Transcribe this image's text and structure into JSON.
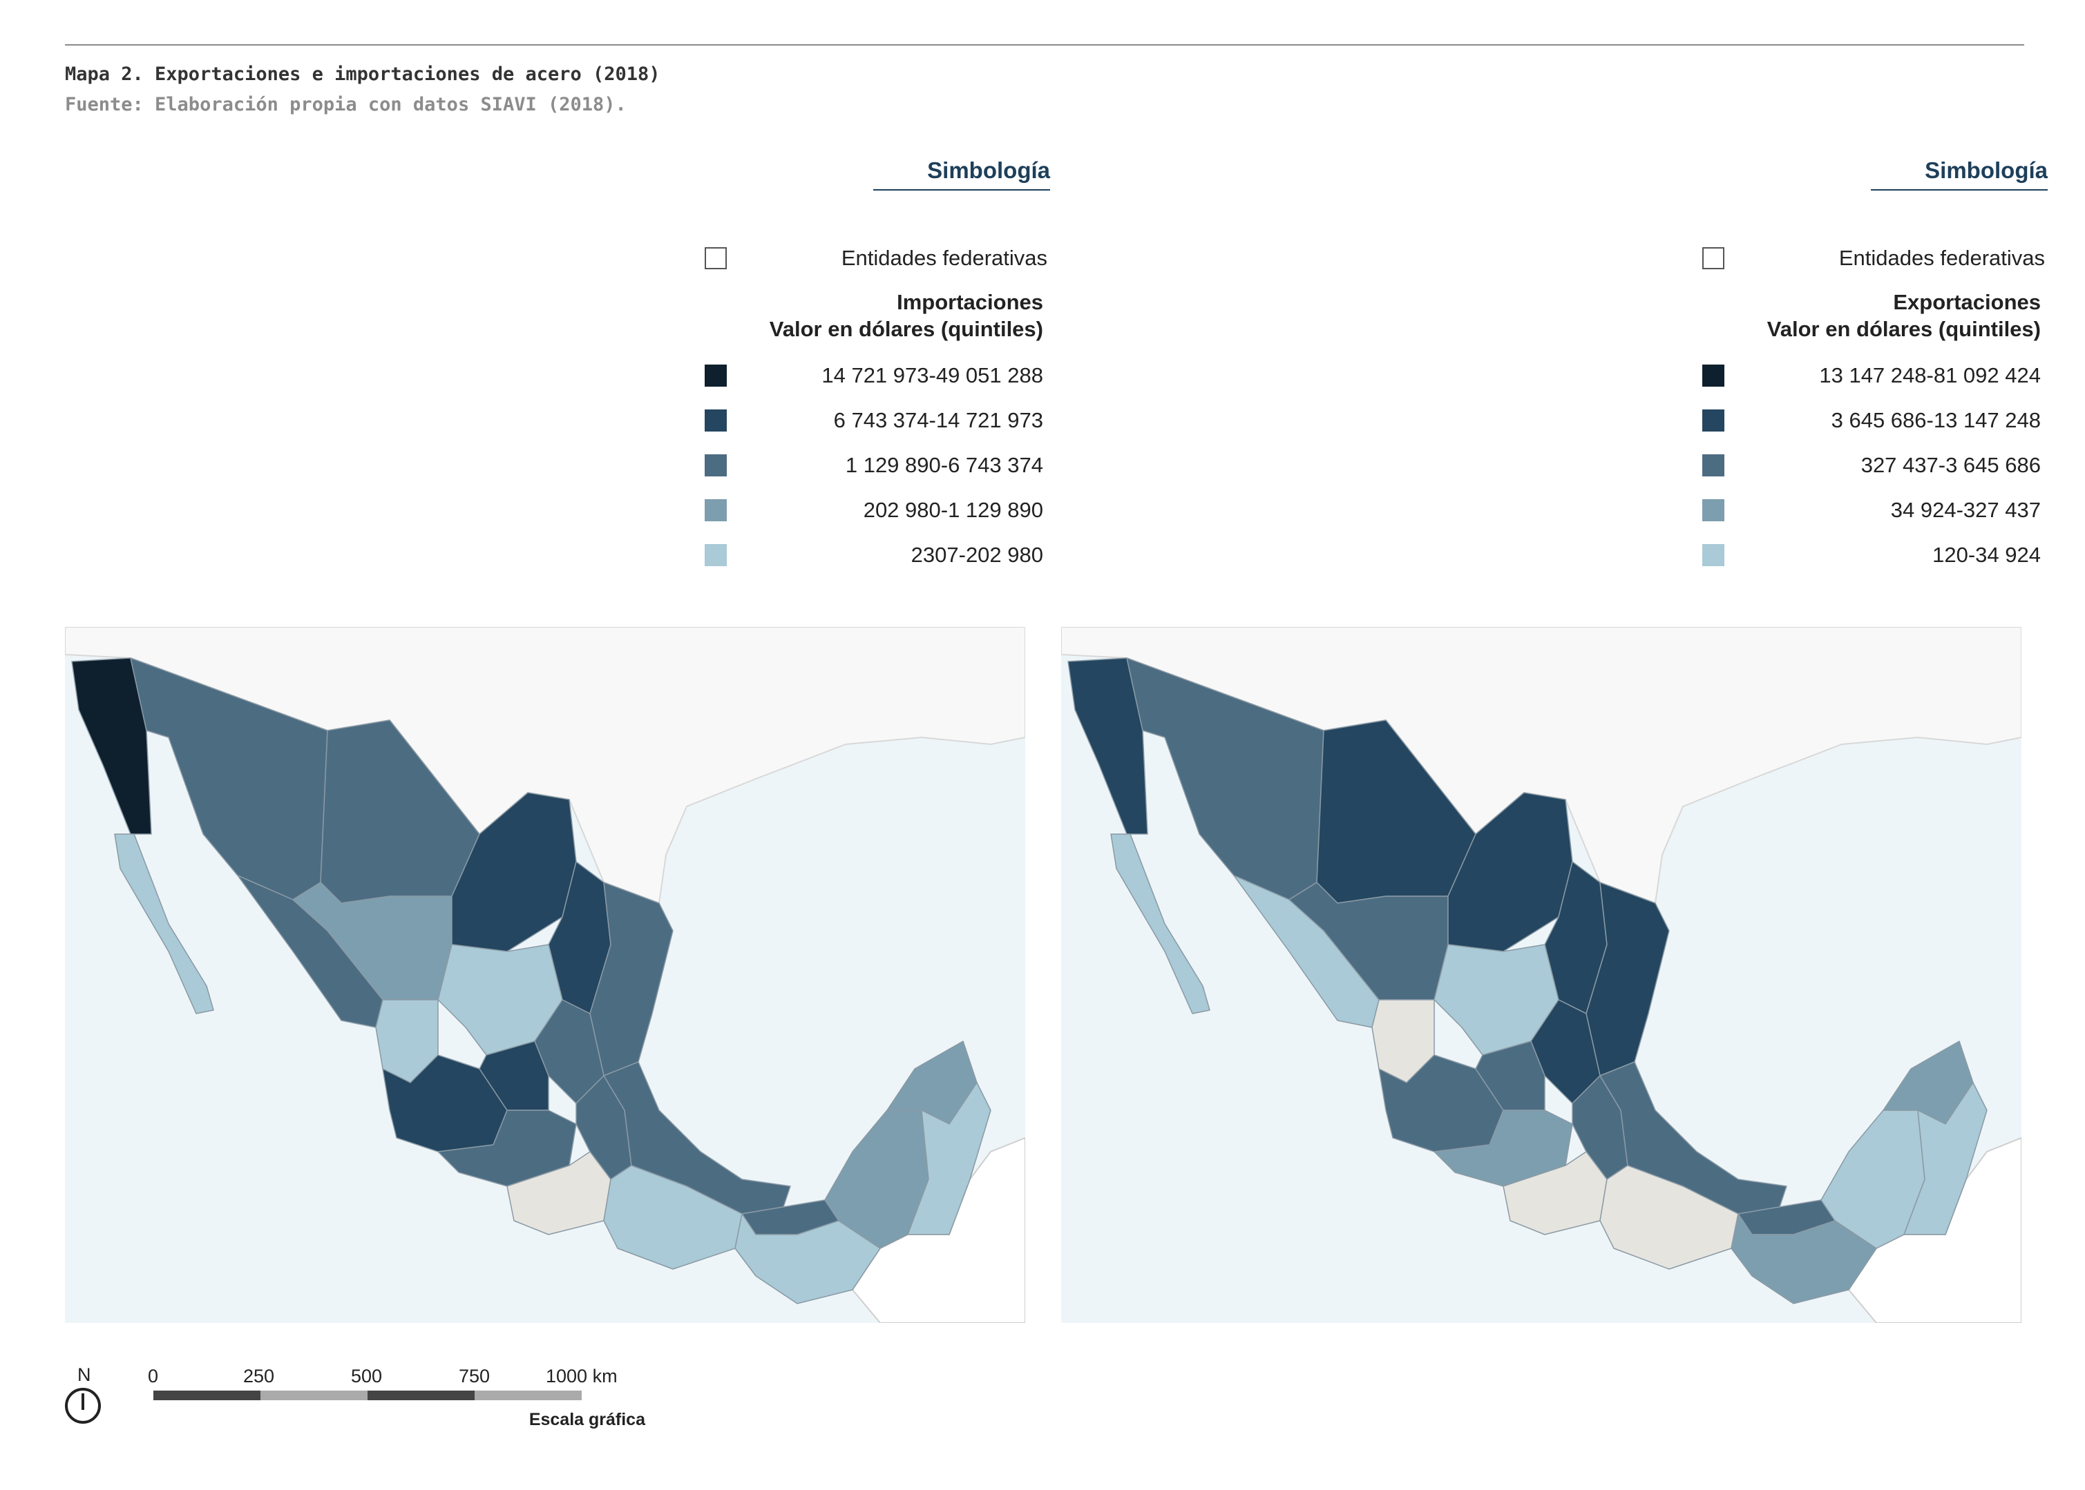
{
  "caption": {
    "title": "Mapa 2. Exportaciones e importaciones de acero (2018)",
    "source": "Fuente: Elaboración propia con datos SIAVI (2018)."
  },
  "colors": {
    "q5": "#0e202e",
    "q4": "#244660",
    "q3": "#4c6c82",
    "q2": "#7d9eae",
    "q1": "#a9cad6",
    "entity_fill": "#ffffff",
    "ocean": "#eef5f8",
    "land_other": "#f8f8f8",
    "no_data": "#e6e4df",
    "title_blue": "#1d3f5a"
  },
  "legends": [
    {
      "title": "Simbología",
      "entities_label": "Entidades federativas",
      "heading_line1": "Importaciones",
      "heading_line2": "Valor en dólares (quintiles)",
      "classes": [
        "14 721 973-49 051 288",
        "6 743 374-14 721 973",
        "1 129 890-6 743 374",
        "202 980-1 129 890",
        "2307-202 980"
      ]
    },
    {
      "title": "Simbología",
      "entities_label": "Entidades federativas",
      "heading_line1": "Exportaciones",
      "heading_line2": "Valor en dólares (quintiles)",
      "classes": [
        "13 147 248-81 092 424",
        "3 645 686-13 147 248",
        "327 437-3 645 686",
        "34 924-327 437",
        "120-34 924"
      ]
    }
  ],
  "maps": [
    {
      "variable": "Importaciones",
      "states": {
        "baja_california": 5,
        "baja_california_sur": 1,
        "sonora": 3,
        "chihuahua": 3,
        "coahuila": 4,
        "nuevo_leon": 4,
        "tamaulipas": 3,
        "sinaloa": 3,
        "durango": 2,
        "zacatecas": 1,
        "san_luis_potosi": 3,
        "nayarit": 1,
        "jalisco": 4,
        "guanajuato": 4,
        "michoacan": 3,
        "guerrero": 0,
        "oaxaca": 1,
        "veracruz": 3,
        "puebla": 3,
        "chiapas": 1,
        "tabasco": 3,
        "campeche": 2,
        "yucatan": 2,
        "quintana_roo": 1
      }
    },
    {
      "variable": "Exportaciones",
      "states": {
        "baja_california": 4,
        "baja_california_sur": 1,
        "sonora": 3,
        "chihuahua": 4,
        "coahuila": 4,
        "nuevo_leon": 4,
        "tamaulipas": 4,
        "sinaloa": 1,
        "durango": 3,
        "zacatecas": 1,
        "san_luis_potosi": 4,
        "nayarit": 0,
        "jalisco": 3,
        "guanajuato": 3,
        "michoacan": 2,
        "guerrero": 0,
        "oaxaca": 0,
        "veracruz": 3,
        "puebla": 3,
        "chiapas": 2,
        "tabasco": 3,
        "campeche": 1,
        "yucatan": 2,
        "quintana_roo": 1
      }
    }
  ],
  "scale_bar": {
    "north": "N",
    "ticks": [
      "0",
      "250",
      "500",
      "750",
      "1000 km"
    ],
    "label": "Escala gráfica"
  }
}
